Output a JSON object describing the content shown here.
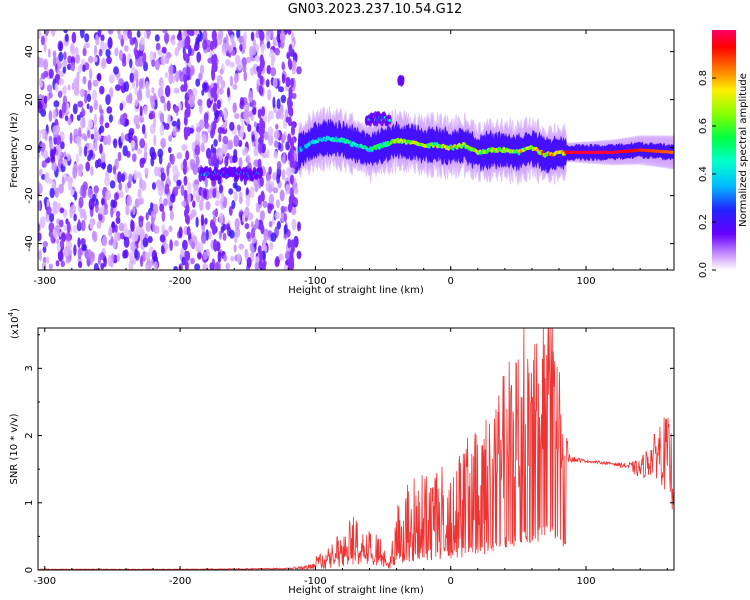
{
  "title": "GN03.2023.237.10.54.G12",
  "chart_data": [
    {
      "type": "heatmap",
      "xlabel": "Height of straight line (km)",
      "ylabel": "Frequency (Hz)",
      "xlim": [
        -305,
        165
      ],
      "ylim": [
        -51,
        49
      ],
      "xticks": [
        -300,
        -200,
        -100,
        0,
        100
      ],
      "yticks": [
        -40,
        -20,
        0,
        20,
        40
      ],
      "colorbar": {
        "label": "Normalized spectral amplitude",
        "range": [
          0,
          1
        ],
        "ticks": [
          "0.0",
          "0.2",
          "0.4",
          "0.6",
          "0.8"
        ]
      },
      "noise_region_x": [
        -305,
        -112
      ],
      "track": {
        "x": [
          -112,
          -100,
          -90,
          -80,
          -70,
          -60,
          -50,
          -40,
          -30,
          -20,
          -10,
          0,
          10,
          20,
          30,
          40,
          50,
          60,
          70,
          85,
          100,
          120,
          140,
          165
        ],
        "freq": [
          -1,
          3,
          4,
          3,
          1,
          -1,
          1,
          3,
          2,
          1,
          1,
          0,
          1,
          -2,
          -1,
          -1,
          -2,
          0,
          -3,
          -2,
          -2,
          -2,
          -1,
          -2
        ],
        "amplitude": [
          0.35,
          0.45,
          0.5,
          0.55,
          0.5,
          0.55,
          0.6,
          0.7,
          0.7,
          0.75,
          0.7,
          0.8,
          0.75,
          0.7,
          0.75,
          0.7,
          0.75,
          0.8,
          0.85,
          0.95,
          0.97,
          0.97,
          0.9,
          0.85
        ]
      },
      "features": [
        {
          "x_range": [
            -185,
            -140
          ],
          "freq": -11,
          "amplitude": 0.35
        },
        {
          "x_range": [
            -62,
            -45
          ],
          "freq": 12,
          "amplitude": 0.45
        },
        {
          "x_range": [
            -38,
            -35
          ],
          "freq": 28,
          "amplitude": 0.2
        }
      ]
    },
    {
      "type": "line",
      "xlabel": "Height of straight line (km)",
      "ylabel": "SNR (10 * v/v)",
      "y_multiplier": "(x10",
      "y_multiplier_exp": "4",
      "y_multiplier_close": ")",
      "xlim": [
        -305,
        165
      ],
      "ylim": [
        0,
        3.6
      ],
      "xticks": [
        -300,
        -200,
        -100,
        0,
        100
      ],
      "yticks": [
        0,
        1,
        2,
        3
      ],
      "series": [
        {
          "color": "#ee3333",
          "x": [
            -305,
            -200,
            -120,
            -100,
            -90,
            -80,
            -70,
            -60,
            -50,
            -45,
            -40,
            -30,
            -20,
            -10,
            0,
            10,
            20,
            30,
            40,
            50,
            55,
            60,
            70,
            75,
            80,
            85,
            90,
            100,
            110,
            120,
            130,
            140,
            150,
            155,
            160,
            165
          ],
          "y": [
            0.01,
            0.01,
            0.02,
            0.05,
            0.25,
            0.35,
            0.5,
            0.35,
            0.25,
            0.05,
            0.6,
            0.8,
            0.9,
            1.0,
            0.9,
            1.2,
            1.4,
            1.6,
            2.0,
            2.3,
            2.9,
            2.5,
            3.1,
            3.5,
            2.2,
            1.8,
            1.65,
            1.62,
            1.6,
            1.58,
            1.55,
            1.5,
            1.7,
            1.8,
            1.7,
            1.4
          ],
          "amp": [
            0.005,
            0.005,
            0.01,
            0.05,
            0.25,
            0.3,
            0.35,
            0.3,
            0.2,
            0.05,
            0.5,
            0.6,
            0.6,
            0.6,
            0.6,
            0.7,
            0.8,
            0.9,
            1.0,
            1.2,
            1.3,
            1.3,
            1.4,
            1.6,
            1.0,
            0.2,
            0.05,
            0.02,
            0.02,
            0.02,
            0.04,
            0.15,
            0.3,
            0.5,
            0.6,
            0.6
          ]
        }
      ]
    }
  ]
}
